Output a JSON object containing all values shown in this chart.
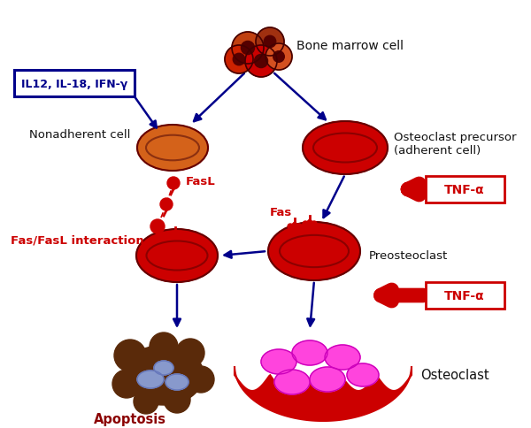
{
  "bg_color": "#ffffff",
  "arrow_color_blue": "#00008B",
  "arrow_color_red": "#cc0000",
  "cell_red": "#cc0000",
  "cell_orange": "#d4621a",
  "cell_inner_red": "#8b0000",
  "cell_inner_orange": "#8b3010",
  "osteoclast_color": "#cc0000",
  "nucleus_pink": "#ff44dd",
  "nucleus_blue": "#8899cc",
  "apoptosis_color": "#5a2a0a",
  "tnf_box_color": "#cc0000",
  "il_box_color": "#00008B",
  "label_nonadherent": "Nonadherent cell",
  "label_osteo_precursor": "Osteoclast precursor\n(adherent cell)",
  "label_preosteoclast": "Preosteoclast",
  "label_osteoclast": "Osteoclast",
  "label_apoptosis": "Apoptosis",
  "label_bone_marrow": "Bone marrow cell",
  "label_fasL": "FasL",
  "label_fas": "Fas",
  "label_fas_fasl": "Fas/FasL interaction",
  "label_tnf": "TNF-α",
  "label_il": "IL12, IL-18, IFN-γ",
  "cluster_cells": [
    [
      280,
      55,
      18,
      "#c04010"
    ],
    [
      305,
      48,
      16,
      "#a03010"
    ],
    [
      270,
      68,
      16,
      "#cc2200"
    ],
    [
      295,
      70,
      18,
      "#cc0000"
    ],
    [
      315,
      65,
      15,
      "#d45020"
    ]
  ]
}
